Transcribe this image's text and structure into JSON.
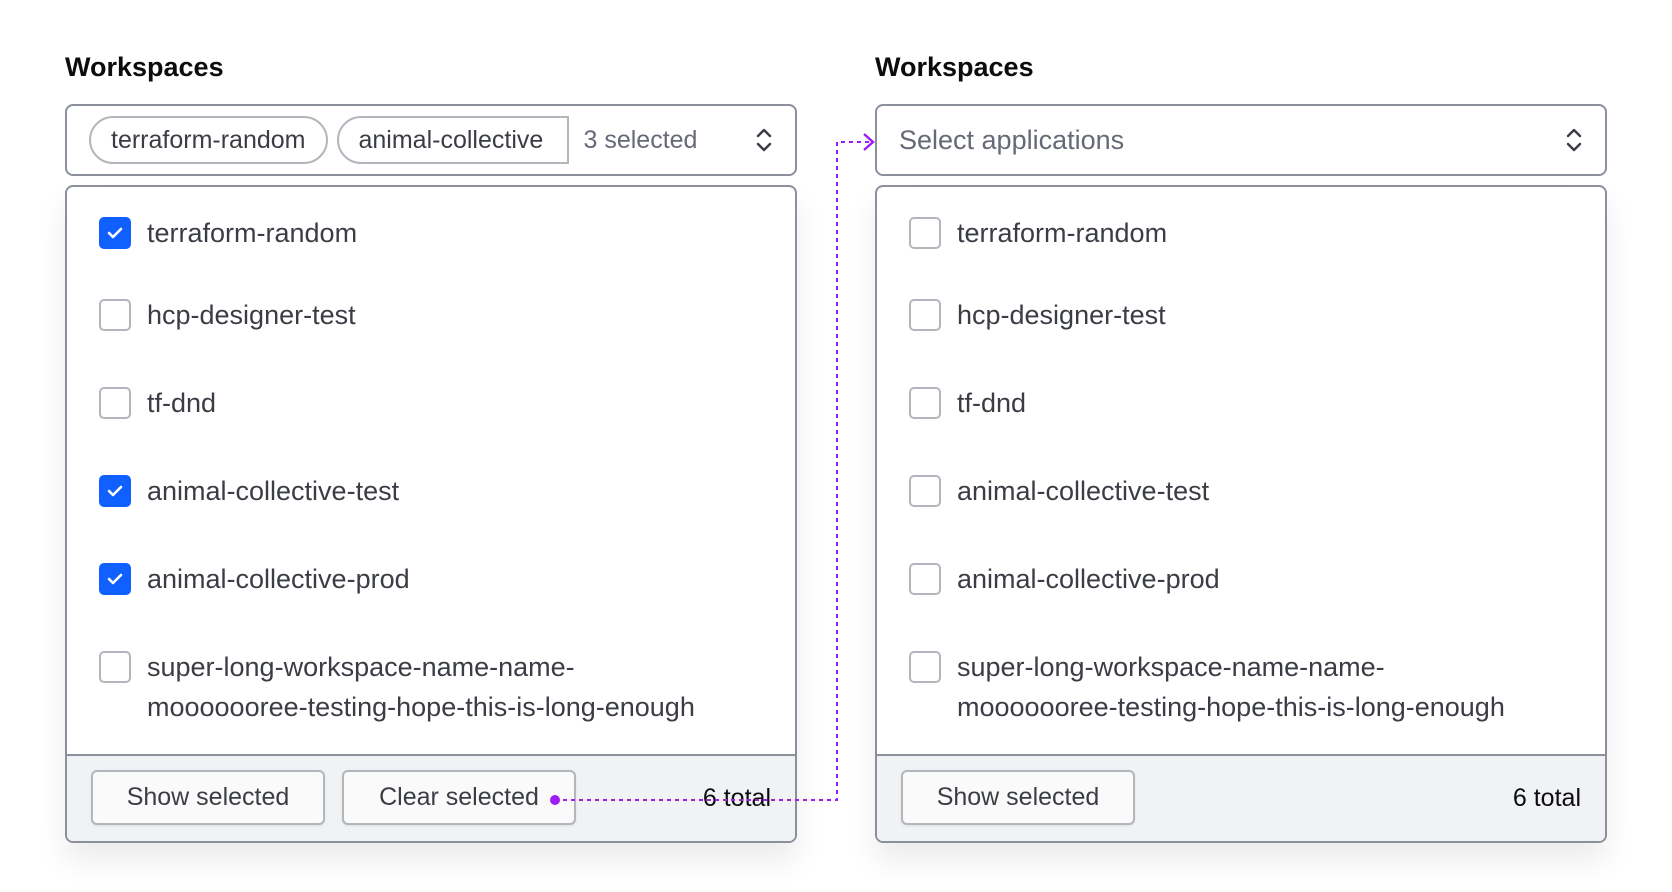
{
  "left": {
    "title": "Workspaces",
    "tags": [
      "terraform-random",
      "animal-collective"
    ],
    "selected_count": "3 selected",
    "options": [
      {
        "label": "terraform-random",
        "checked": true
      },
      {
        "label": "hcp-designer-test",
        "checked": false
      },
      {
        "label": "tf-dnd",
        "checked": false
      },
      {
        "label": "animal-collective-test",
        "checked": true
      },
      {
        "label": "animal-collective-prod",
        "checked": true
      },
      {
        "label": "super-long-workspace-name-name-mooooooree-testing-hope-this-is-long-enough",
        "checked": false
      }
    ],
    "show_selected": "Show selected",
    "clear_selected": "Clear selected",
    "total": "6 total"
  },
  "right": {
    "title": "Workspaces",
    "placeholder": "Select applications",
    "options": [
      {
        "label": "terraform-random",
        "checked": false
      },
      {
        "label": "hcp-designer-test",
        "checked": false
      },
      {
        "label": "tf-dnd",
        "checked": false
      },
      {
        "label": "animal-collective-test",
        "checked": false
      },
      {
        "label": "animal-collective-prod",
        "checked": false
      },
      {
        "label": "super-long-workspace-name-name-mooooooree-testing-hope-this-is-long-enough",
        "checked": false
      }
    ],
    "show_selected": "Show selected",
    "total": "6 total"
  },
  "colors": {
    "accent": "#1060ff",
    "annotation": "#9d1df2",
    "border": "#8c909c"
  }
}
